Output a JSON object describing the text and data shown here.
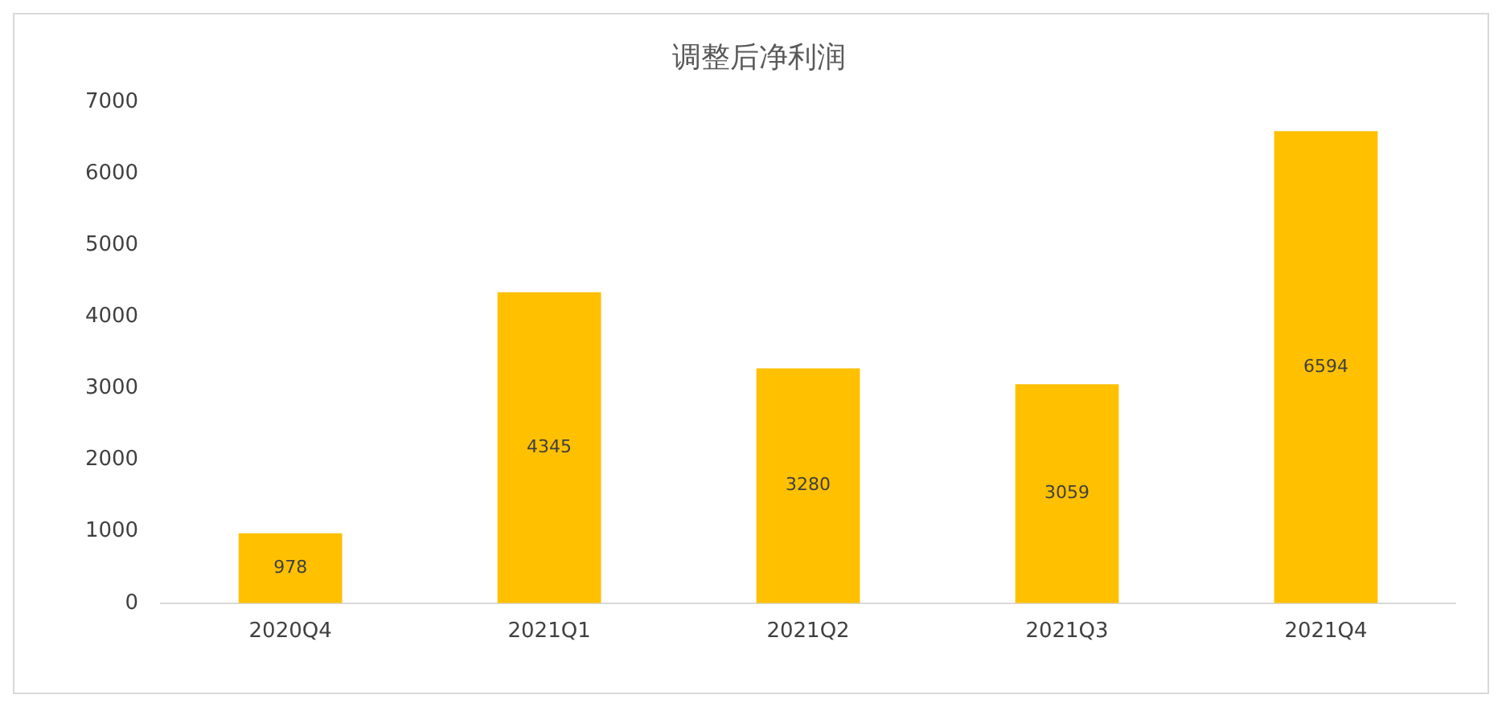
{
  "chart_data": {
    "type": "bar",
    "title": "调整后净利润",
    "categories": [
      "2020Q4",
      "2021Q1",
      "2021Q2",
      "2021Q3",
      "2021Q4"
    ],
    "values": [
      978,
      4345,
      3280,
      3059,
      6594
    ],
    "color": "#ffc000",
    "ylim": [
      0,
      7000
    ],
    "yticks": [
      0,
      1000,
      2000,
      3000,
      4000,
      5000,
      6000,
      7000
    ],
    "grid": false,
    "data_labels": true,
    "legend": false
  }
}
